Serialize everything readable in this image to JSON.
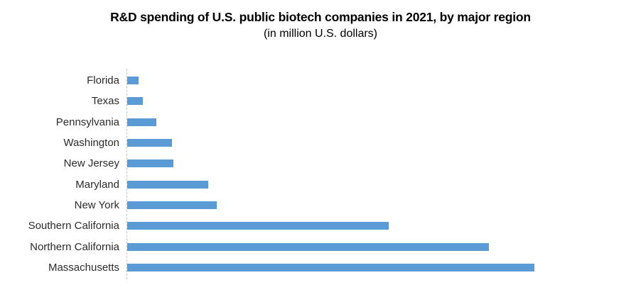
{
  "chart_data": {
    "type": "bar",
    "orientation": "horizontal",
    "title": "R&D spending of U.S. public biotech companies in 2021, by major region",
    "subtitle": "(in million U.S. dollars)",
    "categories": [
      "Florida",
      "Texas",
      "Pennsylvania",
      "Washington",
      "New Jersey",
      "Maryland",
      "New York",
      "Southern California",
      "Northern California",
      "Massachusetts"
    ],
    "values_pct_of_max": [
      2.7,
      3.9,
      7.1,
      10.9,
      11.3,
      19.8,
      21.9,
      64.2,
      88.8,
      100
    ],
    "value_axis": {
      "labels_shown": false,
      "note": "no numeric axis ticks, gridlines, or data labels are rendered; values recorded as percent of the longest bar (Massachusetts)"
    },
    "category_order": "shortest bar at top, longest at bottom",
    "legend": "none",
    "grid": false,
    "colors": {
      "bar": "#5B9BD5",
      "axis_line": "#c3c3c3",
      "title_text": "#000000",
      "label_text": "#2b2b2b"
    }
  }
}
